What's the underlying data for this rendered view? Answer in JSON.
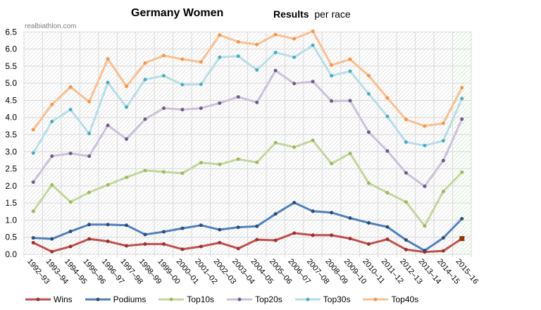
{
  "chart_data": {
    "type": "line",
    "title": "Germany Women",
    "subtitle_bold": "Results",
    "subtitle_rest": "per race",
    "source": "realbiathlon.com",
    "xlabel": "",
    "ylabel": "",
    "ylim": [
      0,
      6.5
    ],
    "yticks": [
      "0.0",
      "0.5",
      "1.0",
      "1.5",
      "2.0",
      "2.5",
      "3.0",
      "3.5",
      "4.0",
      "4.5",
      "5.0",
      "5.5",
      "6.0",
      "6.5"
    ],
    "grid": true,
    "legend_position": "bottom",
    "categories": [
      "1992–93",
      "1993–94",
      "1994–95",
      "1995–96",
      "1996–97",
      "1997–98",
      "1998–99",
      "1999–00",
      "2000–01",
      "2001–02",
      "2002–03",
      "2003–04",
      "2004–05",
      "2005–06",
      "2006–07",
      "2007–08",
      "2008–09",
      "2009–10",
      "2010–11",
      "2011–12",
      "2012–13",
      "2013–14",
      "2014–15",
      "2015–16"
    ],
    "series": [
      {
        "name": "Wins",
        "line": "#c0504d",
        "marker": "#a0302d",
        "values": [
          0.34,
          0.08,
          0.23,
          0.45,
          0.38,
          0.25,
          0.3,
          0.3,
          0.15,
          0.23,
          0.34,
          0.17,
          0.43,
          0.41,
          0.62,
          0.56,
          0.56,
          0.46,
          0.3,
          0.44,
          0.14,
          0.07,
          0.1,
          0.46
        ]
      },
      {
        "name": "Podiums",
        "line": "#4f81bd",
        "marker": "#2c4d75",
        "values": [
          0.48,
          0.45,
          0.67,
          0.87,
          0.87,
          0.85,
          0.58,
          0.66,
          0.76,
          0.85,
          0.72,
          0.79,
          0.82,
          1.18,
          1.51,
          1.26,
          1.22,
          1.06,
          0.92,
          0.8,
          0.42,
          0.11,
          0.48,
          1.04
        ]
      },
      {
        "name": "Top10s",
        "line": "#c3d69b",
        "marker": "#9bbb59",
        "values": [
          1.26,
          2.03,
          1.53,
          1.81,
          2.03,
          2.25,
          2.45,
          2.41,
          2.37,
          2.68,
          2.63,
          2.78,
          2.69,
          3.26,
          3.13,
          3.33,
          2.65,
          2.95,
          2.08,
          1.8,
          1.53,
          0.83,
          1.84,
          2.4
        ]
      },
      {
        "name": "Top20s",
        "line": "#ccc1da",
        "marker": "#6f5a8e",
        "values": [
          2.11,
          2.87,
          2.95,
          2.87,
          3.77,
          3.37,
          3.95,
          4.27,
          4.23,
          4.27,
          4.42,
          4.6,
          4.44,
          5.37,
          4.99,
          5.05,
          4.48,
          4.49,
          3.57,
          3.02,
          2.38,
          1.99,
          2.74,
          3.95
        ]
      },
      {
        "name": "Top30s",
        "line": "#b7dee8",
        "marker": "#4bacc6",
        "values": [
          2.96,
          3.88,
          4.23,
          3.53,
          5.02,
          4.3,
          5.11,
          5.22,
          4.96,
          4.97,
          5.76,
          5.79,
          5.39,
          5.9,
          5.76,
          6.11,
          5.22,
          5.35,
          4.69,
          4.03,
          3.28,
          3.18,
          3.32,
          4.55
        ]
      },
      {
        "name": "Top40s",
        "line": "#fac090",
        "marker": "#f79646",
        "values": [
          3.64,
          4.38,
          4.89,
          4.46,
          5.71,
          4.91,
          5.59,
          5.81,
          5.7,
          5.62,
          6.41,
          6.21,
          6.13,
          6.42,
          6.3,
          6.52,
          5.53,
          5.7,
          5.22,
          4.57,
          3.94,
          3.75,
          3.83,
          4.87
        ]
      }
    ],
    "highlighted_category": "2015–16"
  }
}
